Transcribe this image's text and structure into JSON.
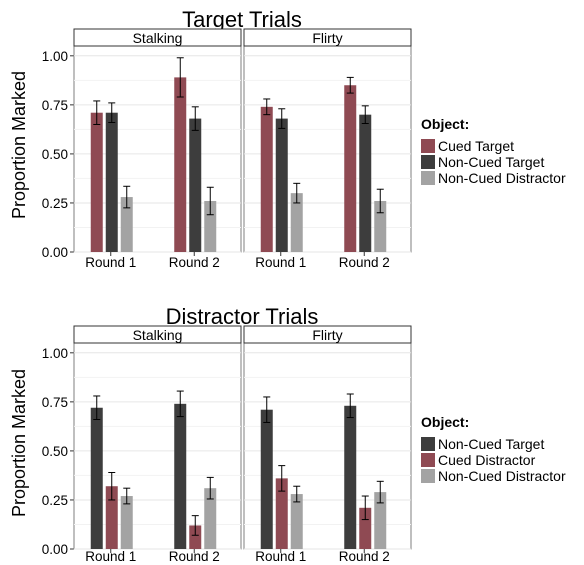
{
  "chart_data": [
    {
      "type": "bar",
      "title": "Target Trials",
      "ylabel": "Proportion Marked",
      "ylim": [
        0,
        1.05
      ],
      "yticks": [
        "0.00",
        "0.25",
        "0.50",
        "0.75",
        "1.00"
      ],
      "categories": [
        "Round 1",
        "Round 2"
      ],
      "legend": {
        "title": "Object:",
        "placement": "right",
        "entries": [
          "Cued Target",
          "Non-Cued Target",
          "Non-Cued Distractor"
        ]
      },
      "facets": [
        {
          "label": "Stalking",
          "series": [
            {
              "name": "Cued Target",
              "values": [
                0.71,
                0.89
              ],
              "err": [
                0.06,
                0.1
              ]
            },
            {
              "name": "Non-Cued Target",
              "values": [
                0.71,
                0.68
              ],
              "err": [
                0.05,
                0.06
              ]
            },
            {
              "name": "Non-Cued Distractor",
              "values": [
                0.28,
                0.26
              ],
              "err": [
                0.055,
                0.07
              ]
            }
          ]
        },
        {
          "label": "Flirty",
          "series": [
            {
              "name": "Cued Target",
              "values": [
                0.74,
                0.85
              ],
              "err": [
                0.04,
                0.04
              ]
            },
            {
              "name": "Non-Cued Target",
              "values": [
                0.68,
                0.7
              ],
              "err": [
                0.05,
                0.045
              ]
            },
            {
              "name": "Non-Cued Distractor",
              "values": [
                0.3,
                0.26
              ],
              "err": [
                0.05,
                0.06
              ]
            }
          ]
        }
      ]
    },
    {
      "type": "bar",
      "title": "Distractor Trials",
      "ylabel": "Proportion Marked",
      "ylim": [
        0,
        1.05
      ],
      "yticks": [
        "0.00",
        "0.25",
        "0.50",
        "0.75",
        "1.00"
      ],
      "categories": [
        "Round 1",
        "Round 2"
      ],
      "legend": {
        "title": "Object:",
        "placement": "right",
        "entries": [
          "Non-Cued Target",
          "Cued Distractor",
          "Non-Cued Distractor"
        ]
      },
      "facets": [
        {
          "label": "Stalking",
          "series": [
            {
              "name": "Non-Cued Target",
              "values": [
                0.72,
                0.74
              ],
              "err": [
                0.06,
                0.065
              ]
            },
            {
              "name": "Cued Distractor",
              "values": [
                0.32,
                0.12
              ],
              "err": [
                0.07,
                0.05
              ]
            },
            {
              "name": "Non-Cued Distractor",
              "values": [
                0.27,
                0.31
              ],
              "err": [
                0.04,
                0.055
              ]
            }
          ]
        },
        {
          "label": "Flirty",
          "series": [
            {
              "name": "Non-Cued Target",
              "values": [
                0.71,
                0.73
              ],
              "err": [
                0.065,
                0.06
              ]
            },
            {
              "name": "Cued Distractor",
              "values": [
                0.36,
                0.21
              ],
              "err": [
                0.065,
                0.06
              ]
            },
            {
              "name": "Non-Cued Distractor",
              "values": [
                0.28,
                0.29
              ],
              "err": [
                0.04,
                0.055
              ]
            }
          ]
        }
      ]
    }
  ],
  "colors": {
    "Cued Target": "#8f4a53",
    "Cued Distractor": "#8f4a53",
    "Non-Cued Target": "#3d3d3d",
    "Non-Cued Distractor": "#a3a3a3"
  }
}
